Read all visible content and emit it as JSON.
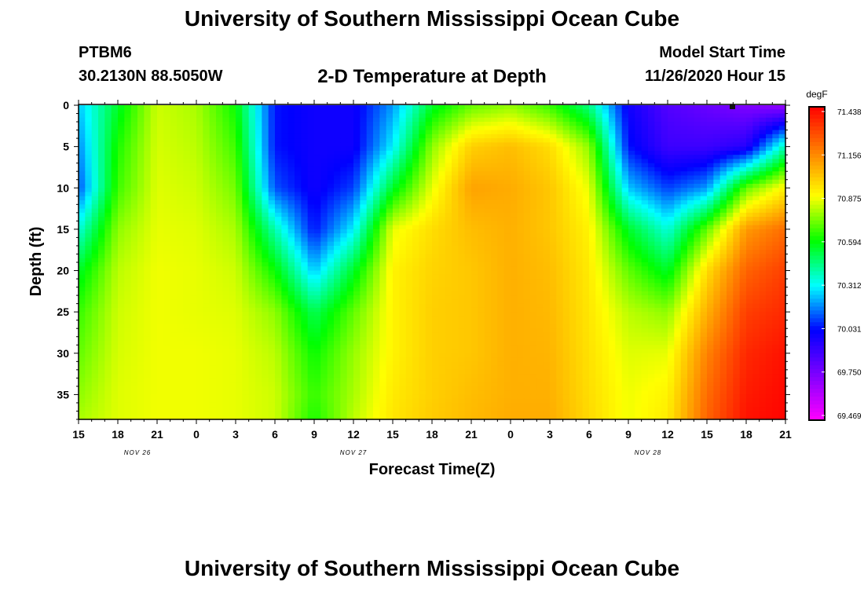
{
  "header": {
    "title": "University of Southern Mississippi Ocean Cube",
    "station": "PTBM6",
    "coords": "30.2130N 88.5050W",
    "plot_title": "2-D Temperature at Depth",
    "start_label": "Model Start Time",
    "start_time": "11/26/2020 Hour 15"
  },
  "footer": {
    "title": "University of Southern Mississippi Ocean Cube"
  },
  "chart_data": {
    "type": "heatmap",
    "title": "2-D Temperature at Depth",
    "xlabel": "Forecast Time(Z)",
    "ylabel": "Depth (ft)",
    "x_tick_labels": [
      "15",
      "18",
      "21",
      "0",
      "3",
      "6",
      "9",
      "12",
      "15",
      "18",
      "21",
      "0",
      "3",
      "6",
      "9",
      "12",
      "15",
      "18",
      "21"
    ],
    "x_range_hours": [
      0,
      54
    ],
    "date_labels": [
      {
        "label": "NOV 26",
        "hour": 4.5
      },
      {
        "label": "NOV 27",
        "hour": 21
      },
      {
        "label": "NOV 28",
        "hour": 43.5
      }
    ],
    "y_ticks": [
      0,
      5,
      10,
      15,
      20,
      25,
      30,
      35
    ],
    "ylim": [
      0,
      38
    ],
    "y_inverted": true,
    "colorbar": {
      "unit": "degF",
      "tick_labels": [
        "71.438",
        "71.156",
        "70.875",
        "70.594",
        "70.312",
        "70.031",
        "69.750",
        "69.469"
      ],
      "min": 69.469,
      "max": 71.438,
      "colors": [
        "#ff00ff",
        "#8000ff",
        "#0000ff",
        "#00ffff",
        "#00ff00",
        "#ffff00",
        "#ff8000",
        "#ff0000"
      ]
    },
    "sample_depths": [
      0,
      5,
      10,
      15,
      20,
      25,
      30,
      35,
      38
    ],
    "sample_hours": [
      0,
      3,
      6,
      9,
      12,
      15,
      18,
      21,
      24,
      27,
      30,
      33,
      36,
      39,
      42,
      45,
      48,
      51,
      54
    ],
    "temperature_grid": [
      [
        70.25,
        70.55,
        70.82,
        70.78,
        70.6,
        70.05,
        70.0,
        70.0,
        70.2,
        70.55,
        70.7,
        70.75,
        70.65,
        70.45,
        70.0,
        69.85,
        69.8,
        69.75,
        69.7
      ],
      [
        70.18,
        70.62,
        70.83,
        70.8,
        70.66,
        70.05,
        70.0,
        70.0,
        70.3,
        70.75,
        70.98,
        71.02,
        70.95,
        70.75,
        70.05,
        69.9,
        69.9,
        69.95,
        70.4
      ],
      [
        70.12,
        70.66,
        70.84,
        70.82,
        70.72,
        70.12,
        70.0,
        70.1,
        70.55,
        70.85,
        71.08,
        71.06,
        71.0,
        70.85,
        70.25,
        70.1,
        70.2,
        70.7,
        70.9
      ],
      [
        70.35,
        70.75,
        70.85,
        70.84,
        70.78,
        70.4,
        70.05,
        70.3,
        70.85,
        70.95,
        71.02,
        71.05,
        71.0,
        70.9,
        70.55,
        70.35,
        70.7,
        71.1,
        71.2
      ],
      [
        70.55,
        70.8,
        70.86,
        70.85,
        70.82,
        70.6,
        70.25,
        70.55,
        70.9,
        70.97,
        71.0,
        71.05,
        71.02,
        70.92,
        70.7,
        70.55,
        70.95,
        71.22,
        71.3
      ],
      [
        70.65,
        70.82,
        70.86,
        70.85,
        70.84,
        70.75,
        70.5,
        70.7,
        70.9,
        70.98,
        71.0,
        71.05,
        71.03,
        70.93,
        70.8,
        70.75,
        71.05,
        71.3,
        71.35
      ],
      [
        70.7,
        70.83,
        70.86,
        70.86,
        70.85,
        70.8,
        70.6,
        70.76,
        70.9,
        70.98,
        71.0,
        71.05,
        71.04,
        70.94,
        70.84,
        70.85,
        71.15,
        71.35,
        71.4
      ],
      [
        70.75,
        70.84,
        70.86,
        70.86,
        70.85,
        70.82,
        70.65,
        70.78,
        70.92,
        70.98,
        71.02,
        71.05,
        71.05,
        70.95,
        70.86,
        70.9,
        71.2,
        71.38,
        71.42
      ],
      [
        70.78,
        70.84,
        70.86,
        70.86,
        70.85,
        70.82,
        70.62,
        70.8,
        70.93,
        70.99,
        71.03,
        71.06,
        71.06,
        70.96,
        70.86,
        70.92,
        71.22,
        71.4,
        71.43
      ]
    ]
  }
}
